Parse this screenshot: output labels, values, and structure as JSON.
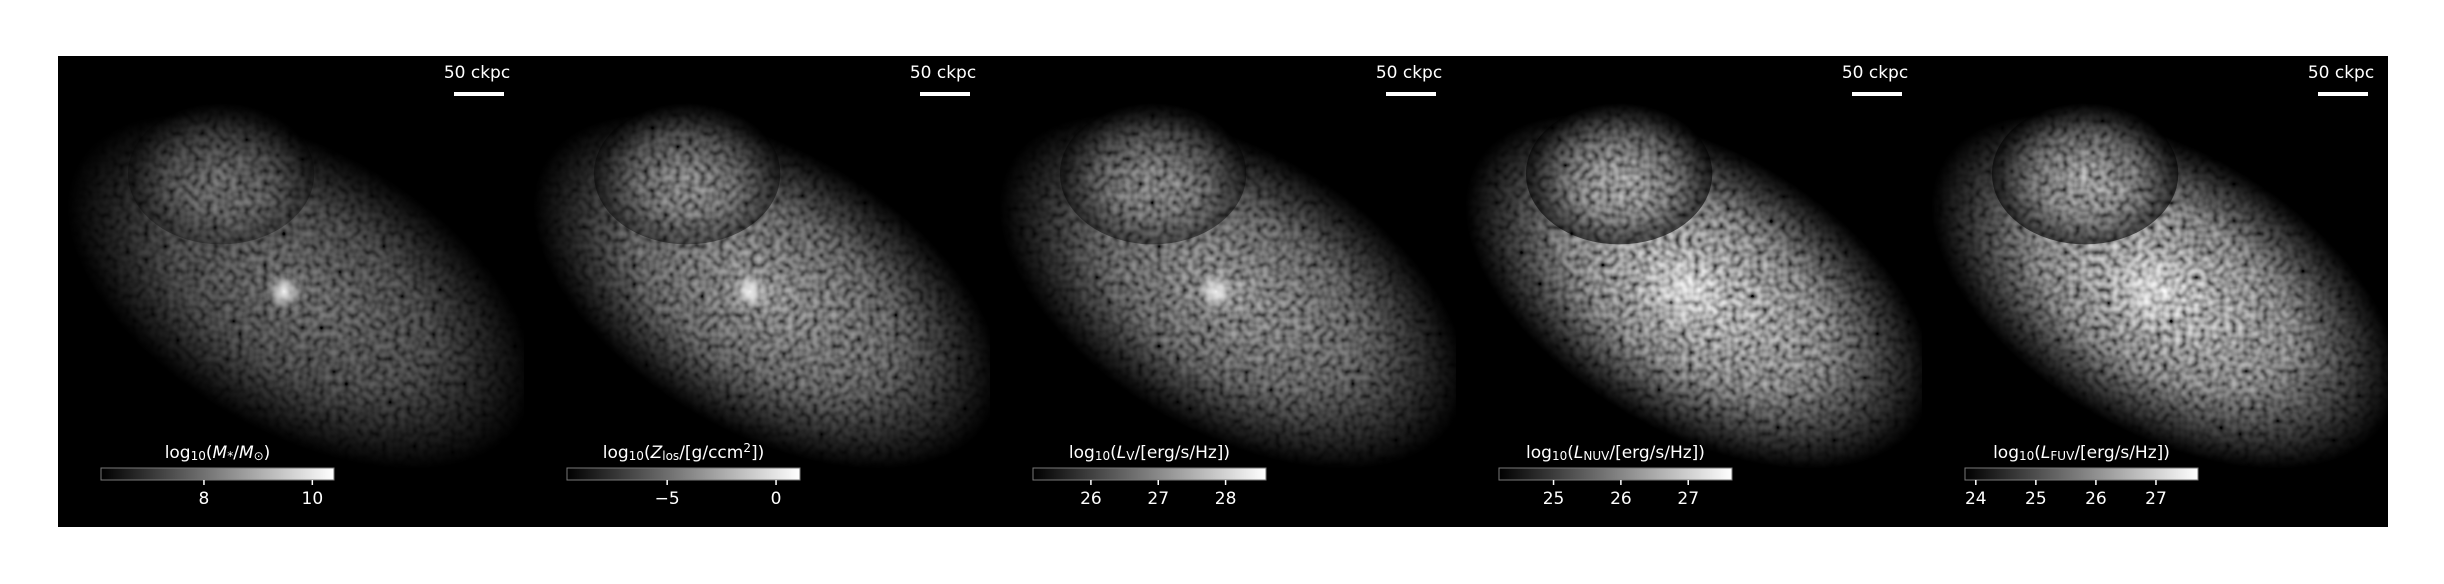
{
  "panels": [
    {
      "scalebar": "50 ckpc",
      "colorbar": {
        "label": [
          {
            "text": "log"
          },
          {
            "text": "10",
            "style": "sub"
          },
          {
            "text": "("
          },
          {
            "text": "M",
            "style": "italic"
          },
          {
            "text": "*",
            "style": "sub"
          },
          {
            "text": "/"
          },
          {
            "text": "M",
            "style": "italic"
          },
          {
            "text": "⊙",
            "style": "sub"
          },
          {
            "text": ")"
          }
        ],
        "clim": [
          6.1,
          10.4
        ],
        "ticks": [
          8,
          10
        ]
      }
    },
    {
      "scalebar": "50 ckpc",
      "colorbar": {
        "label": [
          {
            "text": "log"
          },
          {
            "text": "10",
            "style": "sub"
          },
          {
            "text": "("
          },
          {
            "text": "Z",
            "style": "italic"
          },
          {
            "text": "los",
            "style": "sub"
          },
          {
            "text": "/[g/ccm"
          },
          {
            "text": "2",
            "style": "sup"
          },
          {
            "text": "])"
          }
        ],
        "clim": [
          -9.6,
          1.1
        ],
        "ticks": [
          {
            "value": -5,
            "label": "−5"
          },
          0
        ]
      }
    },
    {
      "scalebar": "50 ckpc",
      "colorbar": {
        "label": [
          {
            "text": "log"
          },
          {
            "text": "10",
            "style": "sub"
          },
          {
            "text": "("
          },
          {
            "text": "L",
            "style": "italic"
          },
          {
            "text": "V",
            "style": "sub"
          },
          {
            "text": "/[erg/s/Hz])"
          }
        ],
        "clim": [
          25.14,
          28.6
        ],
        "ticks": [
          26,
          27,
          28
        ]
      }
    },
    {
      "scalebar": "50 ckpc",
      "colorbar": {
        "label": [
          {
            "text": "log"
          },
          {
            "text": "10",
            "style": "sub"
          },
          {
            "text": "("
          },
          {
            "text": "L",
            "style": "italic"
          },
          {
            "text": "NUV",
            "style": "sub"
          },
          {
            "text": "/[erg/s/Hz])"
          }
        ],
        "clim": [
          24.19,
          27.65
        ],
        "ticks": [
          25,
          26,
          27
        ]
      }
    },
    {
      "scalebar": "50 ckpc",
      "colorbar": {
        "label": [
          {
            "text": "log"
          },
          {
            "text": "10",
            "style": "sub"
          },
          {
            "text": "("
          },
          {
            "text": "L",
            "style": "italic"
          },
          {
            "text": "FUV",
            "style": "sub"
          },
          {
            "text": "/[erg/s/Hz])"
          }
        ],
        "clim": [
          23.82,
          27.7
        ],
        "ticks": [
          24,
          25,
          26,
          27
        ]
      }
    }
  ]
}
